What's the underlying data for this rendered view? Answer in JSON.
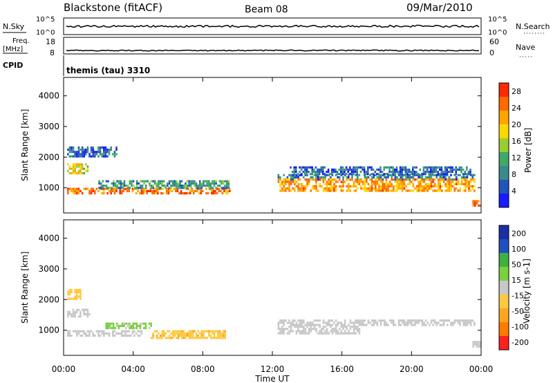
{
  "header": {
    "station": "Blackstone (fitACF)",
    "beam": "Beam 08",
    "date": "09/Mar/2010"
  },
  "strips": {
    "nsky_label": "N.Sky",
    "nsearch_label": "N.Search",
    "count_ticks_left": [
      "10^5",
      "10^0"
    ],
    "count_ticks_right": [
      "10^5",
      "10^0"
    ],
    "freq_label": "Freq.",
    "freq_unit": "[MHz]",
    "freq_ticks": [
      "18",
      "8"
    ],
    "nave_label": "Nave",
    "nave_ticks": [
      "60",
      "0"
    ],
    "cpid_label": "CPID",
    "cpid_value": "themis (tau) 3310"
  },
  "axes": {
    "ylabel": "Slant Range [km]",
    "xlabel": "Time UT",
    "x_ticks": [
      "00:00",
      "04:00",
      "08:00",
      "12:00",
      "16:00",
      "20:00",
      "00:00"
    ]
  },
  "colors": {
    "power_scale": [
      "#1a1aff",
      "#2255b8",
      "#3a8a8a",
      "#3fa86a",
      "#9acd32",
      "#ffd700",
      "#ffa500",
      "#ff6a00",
      "#ff2a00"
    ],
    "velocity_scale": [
      "#ff2020",
      "#ff7a00",
      "#ffa520",
      "#ffc840",
      "#c8c8c8",
      "#7ad040",
      "#40b040",
      "#2050c0",
      "#1c2fa0"
    ]
  },
  "chart_data": [
    {
      "type": "heatmap",
      "panel": "power",
      "xlabel": "Time UT",
      "ylabel": "Slant Range [km]",
      "xlim_hours": [
        0,
        24
      ],
      "ylim": [
        180,
        4600
      ],
      "y_ticks": [
        1000,
        2000,
        3000,
        4000
      ],
      "colorbar_label": "Power [dB]",
      "colorbar_ticks": [
        4,
        8,
        12,
        16,
        20,
        24,
        28
      ],
      "colorbar_range": [
        0,
        30
      ],
      "bands": [
        {
          "t0": 0.2,
          "t1": 3.0,
          "r0": 2050,
          "r1": 2350,
          "value": 6
        },
        {
          "t0": 0.2,
          "t1": 1.4,
          "r0": 1450,
          "r1": 1800,
          "value": 18
        },
        {
          "t0": 0.2,
          "t1": 9.5,
          "r0": 800,
          "r1": 1000,
          "value": 24
        },
        {
          "t0": 2.0,
          "t1": 9.5,
          "r0": 1000,
          "r1": 1250,
          "value": 10
        },
        {
          "t0": 12.3,
          "t1": 23.6,
          "r0": 1300,
          "r1": 1450,
          "value": 7
        },
        {
          "t0": 12.3,
          "t1": 23.6,
          "r0": 900,
          "r1": 1300,
          "value": 22
        },
        {
          "t0": 23.5,
          "t1": 24.0,
          "r0": 450,
          "r1": 600,
          "value": 26
        },
        {
          "t0": 13.0,
          "t1": 23.4,
          "r0": 1450,
          "r1": 1700,
          "value": 6
        }
      ]
    },
    {
      "type": "heatmap",
      "panel": "velocity",
      "xlabel": "Time UT",
      "ylabel": "Slant Range [km]",
      "xlim_hours": [
        0,
        24
      ],
      "ylim": [
        180,
        4600
      ],
      "y_ticks": [
        1000,
        2000,
        3000,
        4000
      ],
      "colorbar_label": "Velocity [m s-1]",
      "colorbar_ticks": [
        200,
        100,
        50,
        15,
        -15,
        -50,
        -100,
        -200
      ],
      "colorbar_range": [
        -250,
        250
      ],
      "bands": [
        {
          "t0": 0.2,
          "t1": 1.0,
          "r0": 2050,
          "r1": 2350,
          "value": -60
        },
        {
          "t0": 0.2,
          "t1": 1.5,
          "r0": 1450,
          "r1": 1700,
          "value": 0
        },
        {
          "t0": 0.2,
          "t1": 4.5,
          "r0": 800,
          "r1": 1000,
          "value": 0
        },
        {
          "t0": 2.4,
          "t1": 5.0,
          "r0": 1100,
          "r1": 1250,
          "value": 40
        },
        {
          "t0": 5.0,
          "t1": 9.3,
          "r0": 750,
          "r1": 1000,
          "value": -70
        },
        {
          "t0": 12.3,
          "t1": 23.6,
          "r0": 1150,
          "r1": 1350,
          "value": 0
        },
        {
          "t0": 12.3,
          "t1": 17.0,
          "r0": 900,
          "r1": 1150,
          "value": 0
        },
        {
          "t0": 23.5,
          "t1": 24.0,
          "r0": 450,
          "r1": 650,
          "value": 0
        }
      ]
    }
  ]
}
